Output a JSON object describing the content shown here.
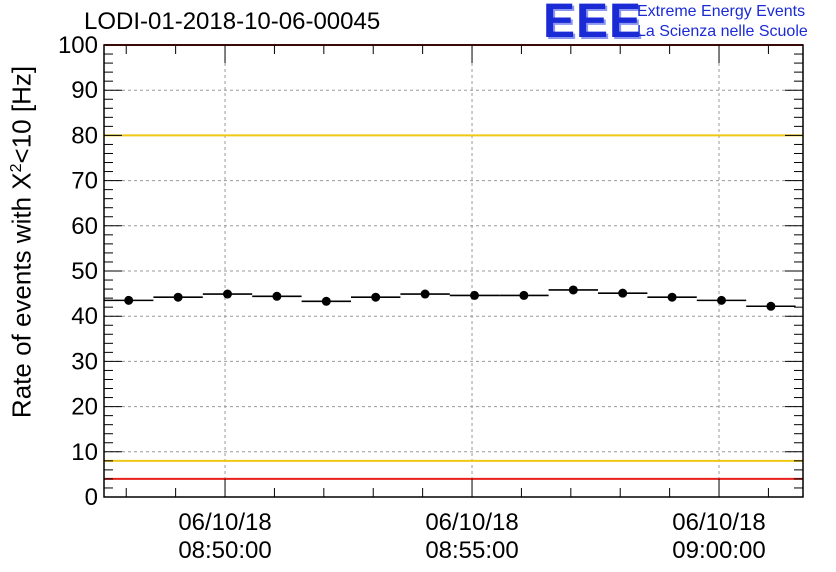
{
  "title": "LODI-01-2018-10-06-00045",
  "logo": {
    "letters": "EEE",
    "line1": "Extreme Energy Events",
    "line2": "La Scienza nelle Scuole"
  },
  "chart_data": {
    "type": "scatter",
    "ylabel_main": "Rate of events with X",
    "ylabel_sup": "2",
    "ylabel_rest": "<10 [Hz]",
    "ylim": [
      0,
      100
    ],
    "y_ticks": [
      "0",
      "10",
      "20",
      "30",
      "40",
      "50",
      "60",
      "70",
      "80",
      "90",
      "100"
    ],
    "x_ticks": [
      {
        "date": "06/10/18",
        "time": "08:50:00",
        "minute": 50
      },
      {
        "date": "06/10/18",
        "time": "08:55:00",
        "minute": 55
      },
      {
        "date": "06/10/18",
        "time": "09:00:00",
        "minute": 60
      }
    ],
    "xlim_minutes": [
      47.55,
      61.7
    ],
    "grid": true,
    "reference_lines": [
      {
        "value": 100,
        "color": "#e8201c"
      },
      {
        "value": 80,
        "color": "#f0c814"
      },
      {
        "value": 8,
        "color": "#f0c814"
      },
      {
        "value": 4,
        "color": "#e8201c"
      }
    ],
    "series": [
      {
        "color": "#000000",
        "bin_width_minutes": 1,
        "points": [
          {
            "x": 48.05,
            "y": 43.5
          },
          {
            "x": 49.05,
            "y": 44.2
          },
          {
            "x": 50.05,
            "y": 44.9
          },
          {
            "x": 51.05,
            "y": 44.4
          },
          {
            "x": 52.05,
            "y": 43.3
          },
          {
            "x": 53.05,
            "y": 44.2
          },
          {
            "x": 54.05,
            "y": 44.9
          },
          {
            "x": 55.05,
            "y": 44.6
          },
          {
            "x": 56.05,
            "y": 44.6
          },
          {
            "x": 57.05,
            "y": 45.8
          },
          {
            "x": 58.05,
            "y": 45.1
          },
          {
            "x": 59.05,
            "y": 44.2
          },
          {
            "x": 60.05,
            "y": 43.5
          },
          {
            "x": 61.05,
            "y": 42.2
          }
        ]
      }
    ]
  }
}
